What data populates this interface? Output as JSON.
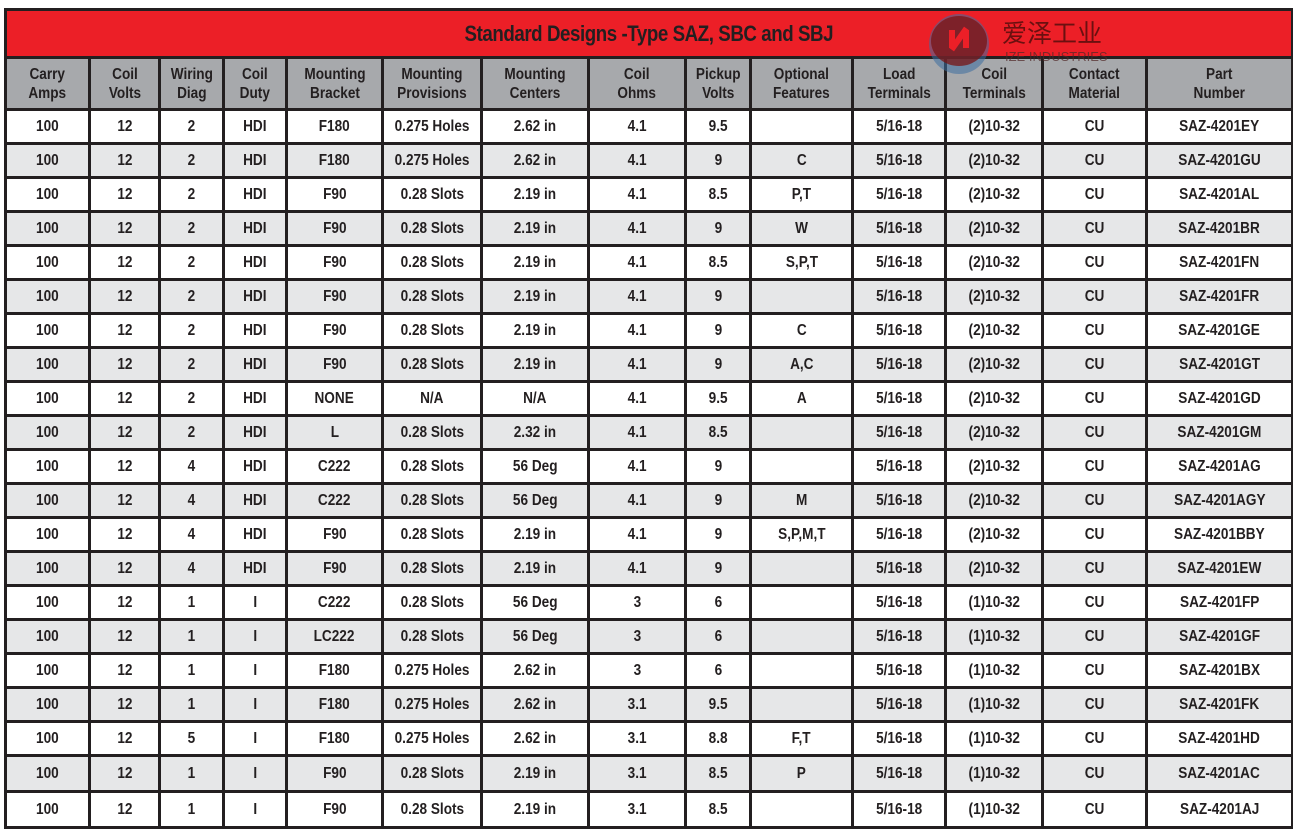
{
  "title": "Standard Designs -Type SAZ, SBC and SBJ",
  "logo": {
    "cn": "爱泽工业",
    "en": "IZE INDUSTRIES"
  },
  "colors": {
    "title_bar": "#ec1f27",
    "header": "#a7a9ac",
    "alt_row": "#e6e7e8"
  },
  "headers": [
    [
      "Carry",
      "Amps"
    ],
    [
      "Coil",
      "Volts"
    ],
    [
      "Wiring",
      "Diag"
    ],
    [
      "Coil",
      "Duty"
    ],
    [
      "Mounting",
      "Bracket"
    ],
    [
      "Mounting",
      "Provisions"
    ],
    [
      "Mounting",
      "Centers"
    ],
    [
      "Coil",
      "Ohms"
    ],
    [
      "Pickup",
      "Volts"
    ],
    [
      "Optional",
      "Features"
    ],
    [
      "Load",
      "Terminals"
    ],
    [
      "Coil",
      "Terminals"
    ],
    [
      "Contact",
      "Material"
    ],
    [
      "Part",
      "Number"
    ]
  ],
  "rows": [
    [
      "100",
      "12",
      "2",
      "HDI",
      "F180",
      "0.275 Holes",
      "2.62 in",
      "4.1",
      "9.5",
      "",
      "5/16-18",
      "(2)10-32",
      "CU",
      "SAZ-4201EY"
    ],
    [
      "100",
      "12",
      "2",
      "HDI",
      "F180",
      "0.275 Holes",
      "2.62 in",
      "4.1",
      "9",
      "C",
      "5/16-18",
      "(2)10-32",
      "CU",
      "SAZ-4201GU"
    ],
    [
      "100",
      "12",
      "2",
      "HDI",
      "F90",
      "0.28 Slots",
      "2.19 in",
      "4.1",
      "8.5",
      "P,T",
      "5/16-18",
      "(2)10-32",
      "CU",
      "SAZ-4201AL"
    ],
    [
      "100",
      "12",
      "2",
      "HDI",
      "F90",
      "0.28 Slots",
      "2.19 in",
      "4.1",
      "9",
      "W",
      "5/16-18",
      "(2)10-32",
      "CU",
      "SAZ-4201BR"
    ],
    [
      "100",
      "12",
      "2",
      "HDI",
      "F90",
      "0.28 Slots",
      "2.19 in",
      "4.1",
      "8.5",
      "S,P,T",
      "5/16-18",
      "(2)10-32",
      "CU",
      "SAZ-4201FN"
    ],
    [
      "100",
      "12",
      "2",
      "HDI",
      "F90",
      "0.28 Slots",
      "2.19 in",
      "4.1",
      "9",
      "",
      "5/16-18",
      "(2)10-32",
      "CU",
      "SAZ-4201FR"
    ],
    [
      "100",
      "12",
      "2",
      "HDI",
      "F90",
      "0.28 Slots",
      "2.19 in",
      "4.1",
      "9",
      "C",
      "5/16-18",
      "(2)10-32",
      "CU",
      "SAZ-4201GE"
    ],
    [
      "100",
      "12",
      "2",
      "HDI",
      "F90",
      "0.28 Slots",
      "2.19 in",
      "4.1",
      "9",
      "A,C",
      "5/16-18",
      "(2)10-32",
      "CU",
      "SAZ-4201GT"
    ],
    [
      "100",
      "12",
      "2",
      "HDI",
      "NONE",
      "N/A",
      "N/A",
      "4.1",
      "9.5",
      "A",
      "5/16-18",
      "(2)10-32",
      "CU",
      "SAZ-4201GD"
    ],
    [
      "100",
      "12",
      "2",
      "HDI",
      "L",
      "0.28 Slots",
      "2.32 in",
      "4.1",
      "8.5",
      "",
      "5/16-18",
      "(2)10-32",
      "CU",
      "SAZ-4201GM"
    ],
    [
      "100",
      "12",
      "4",
      "HDI",
      "C222",
      "0.28 Slots",
      "56 Deg",
      "4.1",
      "9",
      "",
      "5/16-18",
      "(2)10-32",
      "CU",
      "SAZ-4201AG"
    ],
    [
      "100",
      "12",
      "4",
      "HDI",
      "C222",
      "0.28 Slots",
      "56 Deg",
      "4.1",
      "9",
      "M",
      "5/16-18",
      "(2)10-32",
      "CU",
      "SAZ-4201AGY"
    ],
    [
      "100",
      "12",
      "4",
      "HDI",
      "F90",
      "0.28 Slots",
      "2.19 in",
      "4.1",
      "9",
      "S,P,M,T",
      "5/16-18",
      "(2)10-32",
      "CU",
      "SAZ-4201BBY"
    ],
    [
      "100",
      "12",
      "4",
      "HDI",
      "F90",
      "0.28 Slots",
      "2.19 in",
      "4.1",
      "9",
      "",
      "5/16-18",
      "(2)10-32",
      "CU",
      "SAZ-4201EW"
    ],
    [
      "100",
      "12",
      "1",
      "I",
      "C222",
      "0.28 Slots",
      "56 Deg",
      "3",
      "6",
      "",
      "5/16-18",
      "(1)10-32",
      "CU",
      "SAZ-4201FP"
    ],
    [
      "100",
      "12",
      "1",
      "I",
      "LC222",
      "0.28 Slots",
      "56 Deg",
      "3",
      "6",
      "",
      "5/16-18",
      "(1)10-32",
      "CU",
      "SAZ-4201GF"
    ],
    [
      "100",
      "12",
      "1",
      "I",
      "F180",
      "0.275 Holes",
      "2.62 in",
      "3",
      "6",
      "",
      "5/16-18",
      "(1)10-32",
      "CU",
      "SAZ-4201BX"
    ],
    [
      "100",
      "12",
      "1",
      "I",
      "F180",
      "0.275 Holes",
      "2.62 in",
      "3.1",
      "9.5",
      "",
      "5/16-18",
      "(1)10-32",
      "CU",
      "SAZ-4201FK"
    ],
    [
      "100",
      "12",
      "5",
      "I",
      "F180",
      "0.275 Holes",
      "2.62 in",
      "3.1",
      "8.8",
      "F,T",
      "5/16-18",
      "(1)10-32",
      "CU",
      "SAZ-4201HD"
    ],
    [
      "100",
      "12",
      "1",
      "I",
      "F90",
      "0.28 Slots",
      "2.19 in",
      "3.1",
      "8.5",
      "P",
      "5/16-18",
      "(1)10-32",
      "CU",
      "SAZ-4201AC"
    ],
    [
      "100",
      "12",
      "1",
      "I",
      "F90",
      "0.28 Slots",
      "2.19 in",
      "3.1",
      "8.5",
      "",
      "5/16-18",
      "(1)10-32",
      "CU",
      "SAZ-4201AJ"
    ]
  ]
}
